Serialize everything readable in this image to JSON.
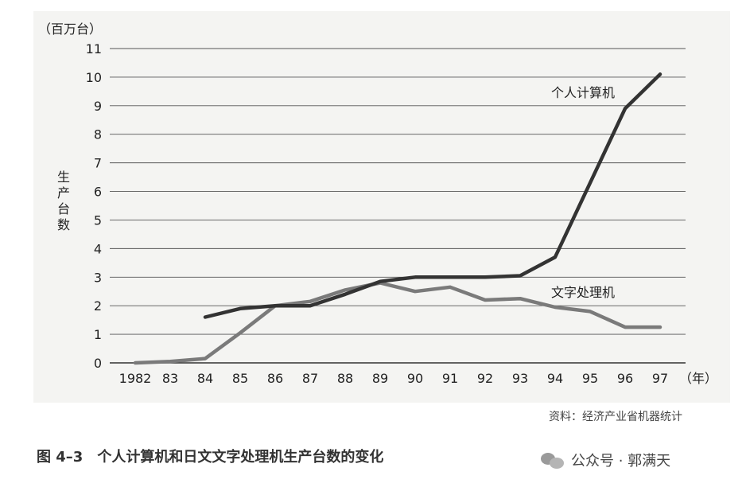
{
  "chart_data": {
    "type": "line",
    "y_unit_label": "（百万台）",
    "ylabel": "生产台数",
    "x_unit_label": "（年）",
    "ylim": [
      0,
      11
    ],
    "yticks": [
      0,
      1,
      2,
      3,
      4,
      5,
      6,
      7,
      8,
      9,
      10,
      11
    ],
    "xticks": [
      "1982",
      "83",
      "84",
      "85",
      "86",
      "87",
      "88",
      "89",
      "90",
      "91",
      "92",
      "93",
      "94",
      "95",
      "96",
      "97"
    ],
    "grid": "horizontal",
    "series": [
      {
        "name": "个人计算机",
        "color": "#333333",
        "points": [
          [
            1984,
            1.6
          ],
          [
            1985,
            1.9
          ],
          [
            1986,
            2.0
          ],
          [
            1987,
            2.0
          ],
          [
            1988,
            2.4
          ],
          [
            1989,
            2.85
          ],
          [
            1990,
            3.0
          ],
          [
            1991,
            3.0
          ],
          [
            1992,
            3.0
          ],
          [
            1993,
            3.05
          ],
          [
            1994,
            3.7
          ],
          [
            1995,
            6.3
          ],
          [
            1996,
            8.9
          ],
          [
            1997,
            10.1
          ]
        ]
      },
      {
        "name": "文字处理机",
        "color": "#7a7a7a",
        "points": [
          [
            1982,
            0.0
          ],
          [
            1983,
            0.05
          ],
          [
            1984,
            0.15
          ],
          [
            1985,
            1.05
          ],
          [
            1986,
            2.0
          ],
          [
            1987,
            2.15
          ],
          [
            1988,
            2.55
          ],
          [
            1989,
            2.8
          ],
          [
            1990,
            2.5
          ],
          [
            1991,
            2.65
          ],
          [
            1992,
            2.2
          ],
          [
            1993,
            2.25
          ],
          [
            1994,
            1.95
          ],
          [
            1995,
            1.8
          ],
          [
            1996,
            1.25
          ],
          [
            1997,
            1.25
          ]
        ]
      }
    ]
  },
  "source_note": "资料：经济产业省机器统计",
  "caption": "图 4–3　个人计算机和日文文字处理机生产台数的变化",
  "watermark": "公众号 · 郭满天"
}
